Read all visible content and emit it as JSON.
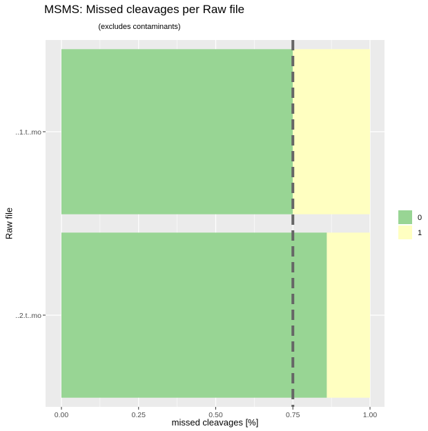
{
  "chart_data": {
    "type": "bar",
    "orientation": "horizontal",
    "stacked": true,
    "title": "MSMS: Missed cleavages per Raw file",
    "subtitle": "(excludes contaminants)",
    "xlabel": "missed cleavages [%]",
    "ylabel": "Raw file",
    "xlim": [
      0,
      1
    ],
    "xticks": [
      "0.00",
      "0.25",
      "0.50",
      "0.75",
      "1.00"
    ],
    "categories": [
      "..1.t..mo",
      "..2.t..mo"
    ],
    "series": [
      {
        "name": "0",
        "values": [
          0.75,
          0.86
        ],
        "color": "#98d594"
      },
      {
        "name": "1",
        "values": [
          0.25,
          0.14
        ],
        "color": "#ffffc1"
      }
    ],
    "reference_line": {
      "x": 0.75,
      "style": "dashed",
      "color": "#666666"
    },
    "grid": true,
    "legend": "right"
  }
}
